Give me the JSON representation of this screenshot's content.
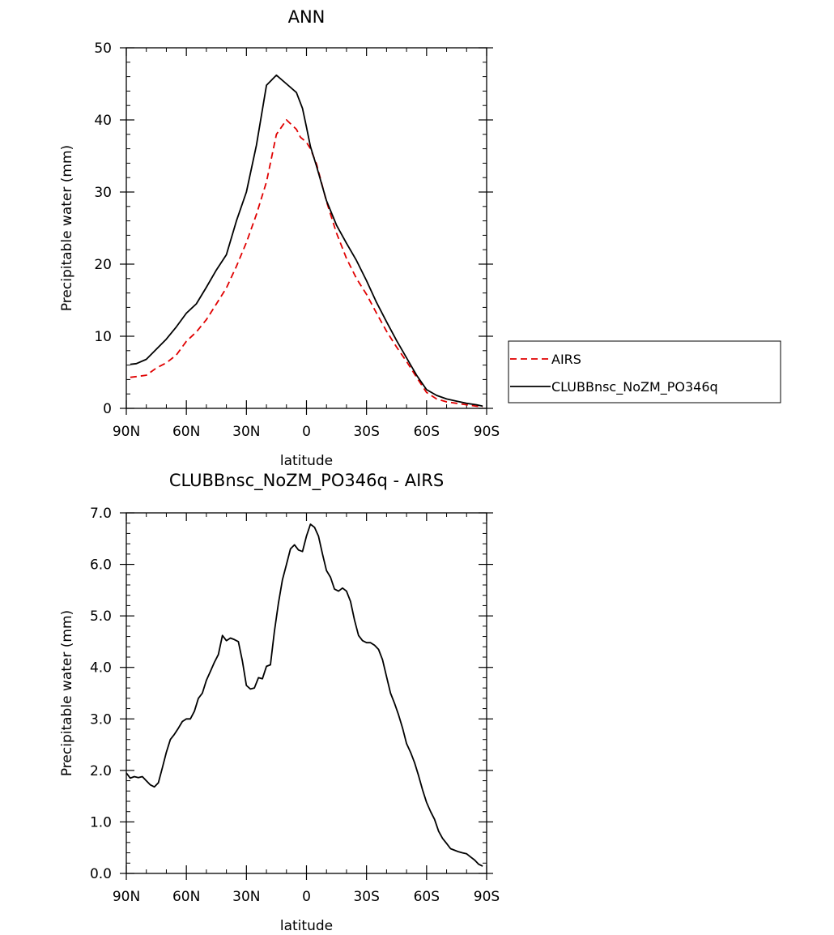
{
  "chart_data": [
    {
      "type": "line",
      "title": "ANN",
      "xlabel": "latitude",
      "ylabel": "Precipitable water (mm)",
      "xlim": [
        90,
        -90
      ],
      "ylim": [
        0,
        50
      ],
      "x_ticks": [
        90,
        60,
        30,
        0,
        -30,
        -60,
        -90
      ],
      "x_tick_labels": [
        "90N",
        "60N",
        "30N",
        "0",
        "30S",
        "60S",
        "90S"
      ],
      "y_ticks": [
        0,
        10,
        20,
        30,
        40,
        50
      ],
      "y_tick_labels": [
        "0",
        "10",
        "20",
        "30",
        "40",
        "50"
      ],
      "legend": "right",
      "grid": false,
      "series": [
        {
          "name": "AIRS",
          "color": "#e00000",
          "style": "dashed",
          "x": [
            88,
            85,
            80,
            75,
            70,
            65,
            60,
            55,
            50,
            45,
            40,
            35,
            30,
            25,
            20,
            15,
            10,
            5,
            3,
            0,
            -2,
            -5,
            -10,
            -15,
            -20,
            -25,
            -30,
            -35,
            -40,
            -45,
            -50,
            -55,
            -60,
            -65,
            -70,
            -75,
            -80,
            -85,
            -88
          ],
          "values": [
            4.3,
            4.4,
            4.6,
            5.6,
            6.3,
            7.4,
            9.3,
            10.6,
            12.3,
            14.5,
            16.7,
            19.7,
            23.0,
            26.9,
            31.4,
            38.0,
            40.0,
            38.7,
            37.6,
            36.9,
            36.0,
            33.9,
            28.7,
            24.3,
            20.8,
            18.0,
            15.8,
            13.2,
            10.7,
            8.5,
            6.5,
            4.3,
            2.2,
            1.3,
            0.9,
            0.7,
            0.5,
            0.3,
            0.2
          ]
        },
        {
          "name": "CLUBBnsc_NoZM_PO346q",
          "color": "#000000",
          "style": "solid",
          "x": [
            88,
            85,
            80,
            75,
            70,
            65,
            60,
            55,
            50,
            45,
            40,
            35,
            30,
            25,
            20,
            15,
            10,
            5,
            2,
            0,
            -2,
            -5,
            -10,
            -15,
            -20,
            -25,
            -30,
            -35,
            -40,
            -45,
            -50,
            -55,
            -60,
            -65,
            -70,
            -75,
            -80,
            -85,
            -88
          ],
          "values": [
            6.1,
            6.2,
            6.8,
            8.2,
            9.6,
            11.3,
            13.2,
            14.5,
            16.8,
            19.2,
            21.3,
            26.0,
            30.0,
            36.5,
            44.8,
            46.2,
            45.0,
            43.8,
            41.6,
            39.0,
            36.3,
            33.6,
            28.8,
            25.4,
            22.9,
            20.5,
            17.7,
            14.7,
            12.0,
            9.4,
            7.0,
            4.6,
            2.6,
            1.8,
            1.3,
            1.0,
            0.7,
            0.5,
            0.3
          ]
        }
      ]
    },
    {
      "type": "line",
      "title": "CLUBBnsc_NoZM_PO346q - AIRS",
      "xlabel": "latitude",
      "ylabel": "Precipitable water (mm)",
      "xlim": [
        90,
        -90
      ],
      "ylim": [
        0,
        7
      ],
      "x_ticks": [
        90,
        60,
        30,
        0,
        -30,
        -60,
        -90
      ],
      "x_tick_labels": [
        "90N",
        "60N",
        "30N",
        "0",
        "30S",
        "60S",
        "90S"
      ],
      "y_ticks": [
        0,
        1,
        2,
        3,
        4,
        5,
        6,
        7
      ],
      "y_tick_labels": [
        "0.0",
        "1.0",
        "2.0",
        "3.0",
        "4.0",
        "5.0",
        "6.0",
        "7.0"
      ],
      "grid": false,
      "series": [
        {
          "color": "#000000",
          "style": "solid",
          "x": [
            90,
            88,
            86,
            84,
            82,
            80,
            78,
            76,
            74,
            72,
            70,
            68,
            66,
            64,
            62,
            60,
            58,
            56,
            54,
            52,
            50,
            48,
            46,
            44,
            42,
            40,
            38,
            36,
            34,
            32,
            30,
            28,
            26,
            24,
            22,
            20,
            18,
            16,
            14,
            12,
            10,
            8,
            6,
            4,
            2,
            0,
            -2,
            -4,
            -6,
            -8,
            -10,
            -12,
            -14,
            -16,
            -18,
            -20,
            -22,
            -24,
            -26,
            -28,
            -30,
            -32,
            -34,
            -36,
            -38,
            -40,
            -42,
            -44,
            -46,
            -48,
            -50,
            -52,
            -54,
            -56,
            -58,
            -60,
            -62,
            -64,
            -66,
            -68,
            -70,
            -72,
            -74,
            -76,
            -78,
            -80,
            -82,
            -84,
            -86,
            -88
          ],
          "values": [
            1.95,
            1.85,
            1.88,
            1.86,
            1.88,
            1.8,
            1.72,
            1.68,
            1.76,
            2.05,
            2.35,
            2.6,
            2.7,
            2.82,
            2.95,
            3.0,
            3.0,
            3.15,
            3.4,
            3.5,
            3.75,
            3.92,
            4.1,
            4.25,
            4.62,
            4.52,
            4.57,
            4.54,
            4.5,
            4.12,
            3.65,
            3.58,
            3.6,
            3.8,
            3.78,
            4.02,
            4.05,
            4.7,
            5.25,
            5.7,
            6.0,
            6.3,
            6.38,
            6.28,
            6.25,
            6.55,
            6.78,
            6.72,
            6.55,
            6.2,
            5.88,
            5.75,
            5.52,
            5.48,
            5.54,
            5.48,
            5.28,
            4.92,
            4.62,
            4.52,
            4.48,
            4.48,
            4.43,
            4.35,
            4.15,
            3.82,
            3.5,
            3.3,
            3.08,
            2.82,
            2.52,
            2.35,
            2.15,
            1.9,
            1.62,
            1.38,
            1.2,
            1.05,
            0.82,
            0.68,
            0.58,
            0.48,
            0.45,
            0.42,
            0.4,
            0.38,
            0.32,
            0.26,
            0.18,
            0.14
          ]
        }
      ]
    }
  ]
}
